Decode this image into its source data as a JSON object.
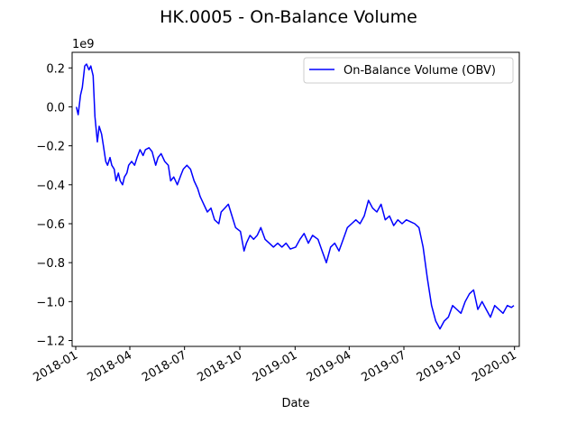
{
  "chart_data": {
    "type": "line",
    "title": "HK.0005 - On-Balance Volume",
    "xlabel": "Date",
    "ylabel": "",
    "y_offset_label": "1e9",
    "y_scale": 1000000000,
    "xlim": [
      "2017-12-26",
      "2020-01-09"
    ],
    "ylim": [
      -1.23,
      0.28
    ],
    "x_ticks": [
      "2018-01-01",
      "2018-04-01",
      "2018-07-01",
      "2018-10-01",
      "2019-01-01",
      "2019-04-01",
      "2019-07-01",
      "2019-10-01",
      "2020-01-01"
    ],
    "x_tick_labels": [
      "2018-01",
      "2018-04",
      "2018-07",
      "2018-10",
      "2019-01",
      "2019-04",
      "2019-07",
      "2019-10",
      "2020-01"
    ],
    "y_ticks": [
      -1.2,
      -1.0,
      -0.8,
      -0.6,
      -0.4,
      -0.2,
      0.0,
      0.2
    ],
    "y_tick_labels": [
      "−1.2",
      "−1.0",
      "−0.8",
      "−0.6",
      "−0.4",
      "−0.2",
      "0.0",
      "0.2"
    ],
    "grid": false,
    "legend_position": "top-right",
    "series": [
      {
        "name": "On-Balance Volume (OBV)",
        "color": "#0000ff",
        "x": [
          "2018-01-02",
          "2018-01-05",
          "2018-01-09",
          "2018-01-12",
          "2018-01-16",
          "2018-01-19",
          "2018-01-23",
          "2018-01-26",
          "2018-01-30",
          "2018-02-02",
          "2018-02-06",
          "2018-02-09",
          "2018-02-13",
          "2018-02-16",
          "2018-02-20",
          "2018-02-23",
          "2018-02-27",
          "2018-03-02",
          "2018-03-06",
          "2018-03-09",
          "2018-03-13",
          "2018-03-16",
          "2018-03-20",
          "2018-03-23",
          "2018-03-27",
          "2018-03-30",
          "2018-04-04",
          "2018-04-09",
          "2018-04-13",
          "2018-04-18",
          "2018-04-23",
          "2018-04-27",
          "2018-05-03",
          "2018-05-08",
          "2018-05-14",
          "2018-05-18",
          "2018-05-23",
          "2018-05-29",
          "2018-06-04",
          "2018-06-08",
          "2018-06-13",
          "2018-06-19",
          "2018-06-25",
          "2018-06-29",
          "2018-07-05",
          "2018-07-11",
          "2018-07-17",
          "2018-07-23",
          "2018-07-27",
          "2018-08-02",
          "2018-08-08",
          "2018-08-14",
          "2018-08-20",
          "2018-08-27",
          "2018-08-31",
          "2018-09-06",
          "2018-09-12",
          "2018-09-18",
          "2018-09-24",
          "2018-10-02",
          "2018-10-08",
          "2018-10-12",
          "2018-10-18",
          "2018-10-24",
          "2018-10-30",
          "2018-11-05",
          "2018-11-12",
          "2018-11-19",
          "2018-11-26",
          "2018-12-03",
          "2018-12-10",
          "2018-12-17",
          "2018-12-24",
          "2019-01-02",
          "2019-01-09",
          "2019-01-16",
          "2019-01-23",
          "2019-01-30",
          "2019-02-08",
          "2019-02-15",
          "2019-02-22",
          "2019-03-01",
          "2019-03-08",
          "2019-03-15",
          "2019-03-22",
          "2019-03-29",
          "2019-04-05",
          "2019-04-12",
          "2019-04-19",
          "2019-04-26",
          "2019-05-03",
          "2019-05-10",
          "2019-05-17",
          "2019-05-24",
          "2019-05-31",
          "2019-06-07",
          "2019-06-14",
          "2019-06-21",
          "2019-06-28",
          "2019-07-05",
          "2019-07-12",
          "2019-07-19",
          "2019-07-26",
          "2019-08-02",
          "2019-08-09",
          "2019-08-16",
          "2019-08-23",
          "2019-08-30",
          "2019-09-06",
          "2019-09-13",
          "2019-09-20",
          "2019-09-27",
          "2019-10-04",
          "2019-10-11",
          "2019-10-18",
          "2019-10-25",
          "2019-11-01",
          "2019-11-08",
          "2019-11-15",
          "2019-11-22",
          "2019-11-29",
          "2019-12-06",
          "2019-12-13",
          "2019-12-20",
          "2019-12-27",
          "2019-12-31"
        ],
        "values": [
          0.0,
          -0.04,
          0.06,
          0.1,
          0.21,
          0.22,
          0.19,
          0.21,
          0.16,
          -0.05,
          -0.18,
          -0.1,
          -0.14,
          -0.2,
          -0.28,
          -0.3,
          -0.26,
          -0.3,
          -0.32,
          -0.38,
          -0.34,
          -0.38,
          -0.4,
          -0.36,
          -0.34,
          -0.3,
          -0.28,
          -0.3,
          -0.26,
          -0.22,
          -0.25,
          -0.22,
          -0.21,
          -0.23,
          -0.3,
          -0.26,
          -0.24,
          -0.28,
          -0.3,
          -0.38,
          -0.36,
          -0.4,
          -0.35,
          -0.32,
          -0.3,
          -0.32,
          -0.38,
          -0.42,
          -0.46,
          -0.5,
          -0.54,
          -0.52,
          -0.58,
          -0.6,
          -0.54,
          -0.52,
          -0.5,
          -0.56,
          -0.62,
          -0.64,
          -0.74,
          -0.7,
          -0.66,
          -0.68,
          -0.66,
          -0.62,
          -0.68,
          -0.7,
          -0.72,
          -0.7,
          -0.72,
          -0.7,
          -0.73,
          -0.72,
          -0.68,
          -0.65,
          -0.7,
          -0.66,
          -0.68,
          -0.74,
          -0.8,
          -0.72,
          -0.7,
          -0.74,
          -0.68,
          -0.62,
          -0.6,
          -0.58,
          -0.6,
          -0.56,
          -0.48,
          -0.52,
          -0.54,
          -0.5,
          -0.58,
          -0.56,
          -0.61,
          -0.58,
          -0.6,
          -0.58,
          -0.59,
          -0.6,
          -0.62,
          -0.72,
          -0.88,
          -1.02,
          -1.1,
          -1.14,
          -1.1,
          -1.08,
          -1.02,
          -1.04,
          -1.06,
          -1.0,
          -0.96,
          -0.94,
          -1.04,
          -1.0,
          -1.04,
          -1.08,
          -1.02,
          -1.04,
          -1.06,
          -1.02,
          -1.03,
          -1.02
        ]
      }
    ]
  }
}
